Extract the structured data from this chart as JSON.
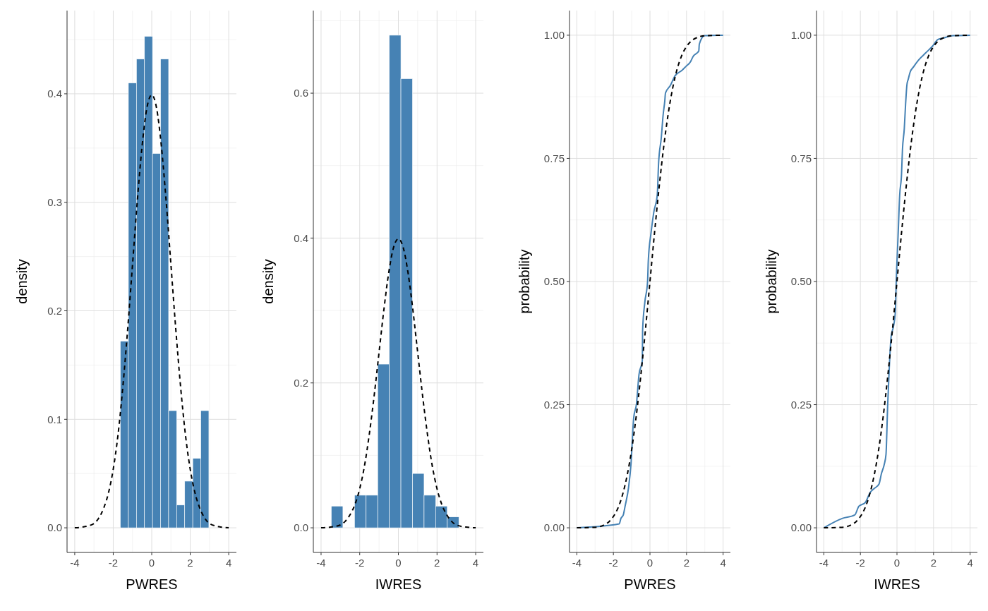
{
  "chart_data": [
    {
      "type": "histogram",
      "xlabel": "PWRES",
      "ylabel": "density",
      "xlim": [
        -4.4,
        4.4
      ],
      "ylim": [
        -0.0227,
        0.4767
      ],
      "xticks": [
        -4,
        -2,
        0,
        2,
        4
      ],
      "yticks": [
        {
          "value": 0,
          "label": "0.0"
        },
        0.1,
        0.2,
        0.3,
        0.4
      ],
      "grid": true,
      "series": [
        {
          "color": "#4682b4",
          "bins": [
            -1.63,
            -1.212,
            -0.794,
            -0.376,
            0.042,
            0.46,
            0.878,
            1.296,
            1.714,
            2.132,
            2.55,
            2.968
          ],
          "values": [
            0.172,
            0.41,
            0.432,
            0.453,
            0.345,
            0.432,
            0.108,
            0.021,
            0.043,
            0.064,
            0.108
          ]
        },
        {
          "type": "line",
          "color": "#000000",
          "line_style": "dashed",
          "x": [
            -4,
            -3.5,
            -3,
            -2.75,
            -2.5,
            -2.25,
            -2,
            -1.75,
            -1.5,
            -1.25,
            -1,
            -0.75,
            -0.5,
            -0.25,
            0,
            0.25,
            0.5,
            0.75,
            1,
            1.25,
            1.5,
            1.75,
            2,
            2.25,
            2.5,
            2.75,
            3,
            3.5,
            4
          ],
          "values": [
            0,
            0.001,
            0.004,
            0.009,
            0.018,
            0.032,
            0.054,
            0.086,
            0.13,
            0.183,
            0.242,
            0.301,
            0.352,
            0.387,
            0.399,
            0.387,
            0.352,
            0.301,
            0.242,
            0.183,
            0.13,
            0.086,
            0.054,
            0.032,
            0.018,
            0.009,
            0.004,
            0.001,
            0
          ]
        }
      ]
    },
    {
      "type": "histogram",
      "xlabel": "IWRES",
      "ylabel": "density",
      "xlim": [
        -4.4,
        4.4
      ],
      "ylim": [
        -0.034,
        0.714
      ],
      "xticks": [
        -4,
        -2,
        0,
        2,
        4
      ],
      "yticks": [
        {
          "value": 0,
          "label": "0.0"
        },
        0.2,
        0.4,
        0.6
      ],
      "grid": true,
      "series": [
        {
          "color": "#4682b4",
          "bins": [
            -3.47,
            -2.87,
            -2.27,
            -1.67,
            -1.07,
            -0.47,
            0.13,
            0.73,
            1.33,
            1.93,
            2.53,
            3.13
          ],
          "values": [
            0.03,
            0,
            0.045,
            0.045,
            0.226,
            0.68,
            0.62,
            0.075,
            0.045,
            0.03,
            0.015
          ]
        },
        {
          "type": "line",
          "color": "#000000",
          "line_style": "dashed",
          "x": [
            -4,
            -3.5,
            -3,
            -2.75,
            -2.5,
            -2.25,
            -2,
            -1.75,
            -1.5,
            -1.25,
            -1,
            -0.75,
            -0.5,
            -0.25,
            0,
            0.25,
            0.5,
            0.75,
            1,
            1.25,
            1.5,
            1.75,
            2,
            2.25,
            2.5,
            2.75,
            3,
            3.5,
            4
          ],
          "values": [
            0,
            0.001,
            0.004,
            0.009,
            0.018,
            0.032,
            0.054,
            0.086,
            0.13,
            0.183,
            0.242,
            0.301,
            0.352,
            0.387,
            0.399,
            0.387,
            0.352,
            0.301,
            0.242,
            0.183,
            0.13,
            0.086,
            0.054,
            0.032,
            0.018,
            0.009,
            0.004,
            0.001,
            0
          ]
        }
      ]
    },
    {
      "type": "line",
      "xlabel": "PWRES",
      "ylabel": "probability",
      "xlim": [
        -4.4,
        4.4
      ],
      "ylim": [
        -0.05,
        1.05
      ],
      "xticks": [
        -4,
        -2,
        0,
        2,
        4
      ],
      "yticks": [
        {
          "value": 0,
          "label": "0.00"
        },
        0.25,
        {
          "value": 0.5,
          "label": "0.50"
        },
        0.75,
        {
          "value": 1,
          "label": "1.00"
        }
      ],
      "grid": true,
      "series": [
        {
          "color": "#4682b4",
          "line_style": "solid",
          "x": [
            -4,
            -1.68,
            -1.59,
            -1.46,
            -1.36,
            -1.17,
            -1.04,
            -0.89,
            -0.74,
            -0.6,
            -0.42,
            -0.4,
            -0.28,
            -0.13,
            -0.09,
            0.06,
            0.21,
            0.4,
            0.47,
            0.62,
            0.72,
            0.81,
            0.85,
            1.1,
            1.38,
            1.76,
            1.95,
            2.23,
            2.36,
            2.67,
            2.7,
            2.99,
            4
          ],
          "values": [
            0,
            0.008,
            0.019,
            0.026,
            0.044,
            0.082,
            0.128,
            0.223,
            0.251,
            0.311,
            0.339,
            0.402,
            0.458,
            0.5,
            0.543,
            0.599,
            0.641,
            0.676,
            0.739,
            0.792,
            0.838,
            0.866,
            0.883,
            0.897,
            0.918,
            0.929,
            0.936,
            0.947,
            0.957,
            0.968,
            0.982,
            0.999,
            1
          ]
        },
        {
          "color": "#000000",
          "line_style": "dashed",
          "x": [
            -4,
            -3,
            -2.5,
            -2.25,
            -2,
            -1.75,
            -1.5,
            -1.25,
            -1,
            -0.75,
            -0.5,
            -0.25,
            0,
            0.25,
            0.5,
            0.75,
            1,
            1.25,
            1.5,
            1.75,
            2,
            2.25,
            2.5,
            3,
            4
          ],
          "values": [
            0,
            0.001,
            0.006,
            0.012,
            0.023,
            0.04,
            0.067,
            0.106,
            0.159,
            0.227,
            0.309,
            0.401,
            0.5,
            0.599,
            0.691,
            0.773,
            0.841,
            0.894,
            0.933,
            0.96,
            0.977,
            0.988,
            0.994,
            0.999,
            1
          ]
        }
      ]
    },
    {
      "type": "line",
      "xlabel": "IWRES",
      "ylabel": "probability",
      "xlim": [
        -4.4,
        4.4
      ],
      "ylim": [
        -0.05,
        1.05
      ],
      "xticks": [
        -4,
        -2,
        0,
        2,
        4
      ],
      "yticks": [
        {
          "value": 0,
          "label": "0.00"
        },
        0.25,
        {
          "value": 0.5,
          "label": "0.50"
        },
        0.75,
        {
          "value": 1,
          "label": "1.00"
        }
      ],
      "grid": true,
      "series": [
        {
          "color": "#4682b4",
          "line_style": "solid",
          "x": [
            -4,
            -3,
            -2.31,
            -2.08,
            -1.74,
            -1.46,
            -1.27,
            -0.98,
            -0.85,
            -0.7,
            -0.6,
            -0.51,
            -0.42,
            -0.32,
            -0.19,
            -0.09,
            -0.04,
            0.06,
            0.15,
            0.25,
            0.3,
            0.4,
            0.47,
            0.55,
            0.62,
            0.72,
            0.91,
            1.19,
            1.57,
            1.95,
            2.23,
            2.51,
            3.08,
            4
          ],
          "values": [
            0,
            0.019,
            0.026,
            0.044,
            0.051,
            0.072,
            0.079,
            0.089,
            0.11,
            0.128,
            0.149,
            0.247,
            0.325,
            0.388,
            0.409,
            0.437,
            0.5,
            0.592,
            0.676,
            0.718,
            0.767,
            0.81,
            0.859,
            0.901,
            0.911,
            0.925,
            0.936,
            0.95,
            0.964,
            0.978,
            0.991,
            0.994,
            0.999,
            1
          ]
        },
        {
          "color": "#000000",
          "line_style": "dashed",
          "x": [
            -4,
            -3,
            -2.5,
            -2.25,
            -2,
            -1.75,
            -1.5,
            -1.25,
            -1,
            -0.75,
            -0.5,
            -0.25,
            0,
            0.25,
            0.5,
            0.75,
            1,
            1.25,
            1.5,
            1.75,
            2,
            2.25,
            2.5,
            3,
            4
          ],
          "values": [
            0,
            0.001,
            0.006,
            0.012,
            0.023,
            0.04,
            0.067,
            0.106,
            0.159,
            0.227,
            0.309,
            0.401,
            0.5,
            0.599,
            0.691,
            0.773,
            0.841,
            0.894,
            0.933,
            0.96,
            0.977,
            0.988,
            0.994,
            0.999,
            1
          ]
        }
      ]
    }
  ]
}
